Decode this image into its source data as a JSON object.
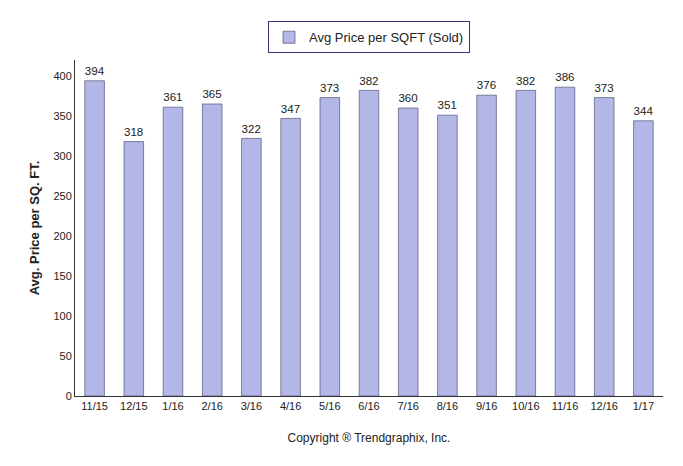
{
  "chart_data": {
    "type": "bar",
    "categories": [
      "11/15",
      "12/15",
      "1/16",
      "2/16",
      "3/16",
      "4/16",
      "5/16",
      "6/16",
      "7/16",
      "8/16",
      "9/16",
      "10/16",
      "11/16",
      "12/16",
      "1/17"
    ],
    "series": [
      {
        "name": "Avg Price per SQFT (Sold)",
        "color": "#b3b7e8",
        "values": [
          394,
          318,
          361,
          365,
          322,
          347,
          373,
          382,
          360,
          351,
          376,
          382,
          386,
          373,
          344
        ]
      }
    ],
    "xlabel": "Copyright ® Trendgraphix, Inc.",
    "ylabel": "Avg. Price per SQ. FT.",
    "ylim": [
      0,
      420
    ],
    "yticks": [
      0,
      50,
      100,
      150,
      200,
      250,
      300,
      350,
      400
    ],
    "grid": false,
    "legend": "upper center",
    "data_labels": true
  }
}
